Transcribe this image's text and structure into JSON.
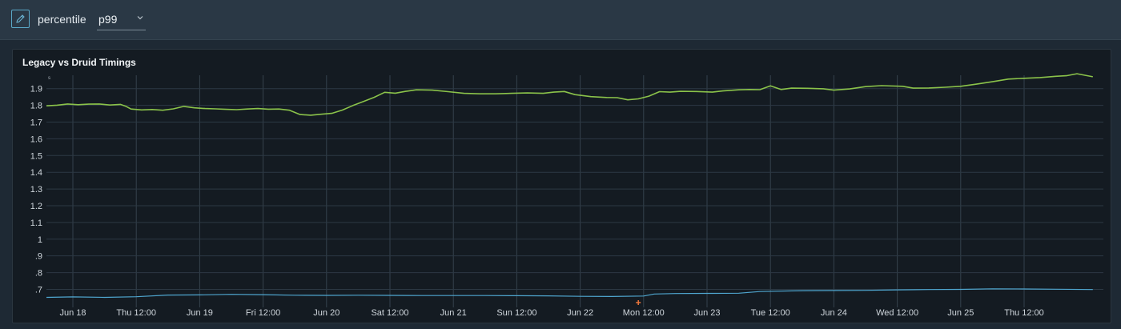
{
  "variable": {
    "label": "percentile",
    "value": "p99"
  },
  "panel": {
    "title": "Legacy vs Druid Timings"
  },
  "colors": {
    "series_green": "#8bc34a",
    "series_blue": "#4fa6cf",
    "marker": "#e8743b"
  },
  "chart_data": {
    "type": "line",
    "title": "Legacy vs Druid Timings",
    "ylabel": "s",
    "ylim": [
      0.64,
      1.98
    ],
    "yticks": [
      {
        "value": 1.9,
        "label": "1.9"
      },
      {
        "value": 1.8,
        "label": "1.8"
      },
      {
        "value": 1.7,
        "label": "1.7"
      },
      {
        "value": 1.6,
        "label": "1.6"
      },
      {
        "value": 1.5,
        "label": "1.5"
      },
      {
        "value": 1.4,
        "label": "1.4"
      },
      {
        "value": 1.3,
        "label": "1.3"
      },
      {
        "value": 1.2,
        "label": "1.2"
      },
      {
        "value": 1.1,
        "label": "1.1"
      },
      {
        "value": 1.0,
        "label": "1"
      },
      {
        "value": 0.9,
        "label": ".9"
      },
      {
        "value": 0.8,
        "label": ".8"
      },
      {
        "value": 0.7,
        "label": ".7"
      }
    ],
    "xlim": [
      "2021-06-17T19:00",
      "2021-06-26T03:00"
    ],
    "xticks": [
      {
        "t": "2021-06-18T00:00",
        "label": "Jun 18"
      },
      {
        "t": "2021-06-18T12:00",
        "label": "Thu 12:00"
      },
      {
        "t": "2021-06-19T00:00",
        "label": "Jun 19"
      },
      {
        "t": "2021-06-19T12:00",
        "label": "Fri 12:00"
      },
      {
        "t": "2021-06-20T00:00",
        "label": "Jun 20"
      },
      {
        "t": "2021-06-20T12:00",
        "label": "Sat 12:00"
      },
      {
        "t": "2021-06-21T00:00",
        "label": "Jun 21"
      },
      {
        "t": "2021-06-21T12:00",
        "label": "Sun 12:00"
      },
      {
        "t": "2021-06-22T00:00",
        "label": "Jun 22"
      },
      {
        "t": "2021-06-22T12:00",
        "label": "Mon 12:00"
      },
      {
        "t": "2021-06-23T00:00",
        "label": "Jun 23"
      },
      {
        "t": "2021-06-23T12:00",
        "label": "Tue 12:00"
      },
      {
        "t": "2021-06-24T00:00",
        "label": "Jun 24"
      },
      {
        "t": "2021-06-24T12:00",
        "label": "Wed 12:00"
      },
      {
        "t": "2021-06-25T00:00",
        "label": "Jun 25"
      },
      {
        "t": "2021-06-25T12:00",
        "label": "Thu 12:00"
      }
    ],
    "grid": true,
    "series": [
      {
        "color": "#8bc34a",
        "points": [
          [
            "2021-06-17T19:00",
            1.797
          ],
          [
            "2021-06-17T21:00",
            1.801
          ],
          [
            "2021-06-17T23:00",
            1.808
          ],
          [
            "2021-06-18T01:00",
            1.804
          ],
          [
            "2021-06-18T03:00",
            1.807
          ],
          [
            "2021-06-18T05:00",
            1.808
          ],
          [
            "2021-06-18T07:00",
            1.802
          ],
          [
            "2021-06-18T09:00",
            1.806
          ],
          [
            "2021-06-18T10:00",
            1.795
          ],
          [
            "2021-06-18T11:00",
            1.778
          ],
          [
            "2021-06-18T13:00",
            1.773
          ],
          [
            "2021-06-18T15:00",
            1.775
          ],
          [
            "2021-06-18T17:00",
            1.771
          ],
          [
            "2021-06-18T19:00",
            1.779
          ],
          [
            "2021-06-18T21:00",
            1.794
          ],
          [
            "2021-06-18T23:00",
            1.785
          ],
          [
            "2021-06-19T01:00",
            1.781
          ],
          [
            "2021-06-19T03:00",
            1.779
          ],
          [
            "2021-06-19T05:00",
            1.776
          ],
          [
            "2021-06-19T07:00",
            1.774
          ],
          [
            "2021-06-19T09:00",
            1.778
          ],
          [
            "2021-06-19T11:00",
            1.781
          ],
          [
            "2021-06-19T13:00",
            1.777
          ],
          [
            "2021-06-19T15:00",
            1.778
          ],
          [
            "2021-06-19T17:00",
            1.771
          ],
          [
            "2021-06-19T19:00",
            1.745
          ],
          [
            "2021-06-19T21:00",
            1.741
          ],
          [
            "2021-06-19T23:00",
            1.747
          ],
          [
            "2021-06-20T01:00",
            1.752
          ],
          [
            "2021-06-20T03:00",
            1.772
          ],
          [
            "2021-06-20T05:00",
            1.799
          ],
          [
            "2021-06-20T07:00",
            1.823
          ],
          [
            "2021-06-20T09:00",
            1.848
          ],
          [
            "2021-06-20T11:00",
            1.878
          ],
          [
            "2021-06-20T13:00",
            1.873
          ],
          [
            "2021-06-20T15:00",
            1.884
          ],
          [
            "2021-06-20T17:00",
            1.893
          ],
          [
            "2021-06-20T20:00",
            1.891
          ],
          [
            "2021-06-20T23:00",
            1.882
          ],
          [
            "2021-06-21T02:00",
            1.872
          ],
          [
            "2021-06-21T05:00",
            1.869
          ],
          [
            "2021-06-21T08:00",
            1.869
          ],
          [
            "2021-06-21T11:00",
            1.872
          ],
          [
            "2021-06-21T14:00",
            1.874
          ],
          [
            "2021-06-21T17:00",
            1.872
          ],
          [
            "2021-06-21T19:00",
            1.879
          ],
          [
            "2021-06-21T21:00",
            1.883
          ],
          [
            "2021-06-21T23:00",
            1.864
          ],
          [
            "2021-06-22T02:00",
            1.852
          ],
          [
            "2021-06-22T05:00",
            1.847
          ],
          [
            "2021-06-22T07:00",
            1.846
          ],
          [
            "2021-06-22T09:00",
            1.833
          ],
          [
            "2021-06-22T11:00",
            1.839
          ],
          [
            "2021-06-22T13:00",
            1.855
          ],
          [
            "2021-06-22T15:00",
            1.882
          ],
          [
            "2021-06-22T17:00",
            1.879
          ],
          [
            "2021-06-22T19:00",
            1.884
          ],
          [
            "2021-06-22T22:00",
            1.883
          ],
          [
            "2021-06-23T01:00",
            1.879
          ],
          [
            "2021-06-23T03:00",
            1.886
          ],
          [
            "2021-06-23T06:00",
            1.893
          ],
          [
            "2021-06-23T08:00",
            1.895
          ],
          [
            "2021-06-23T10:00",
            1.894
          ],
          [
            "2021-06-23T12:00",
            1.917
          ],
          [
            "2021-06-23T14:00",
            1.895
          ],
          [
            "2021-06-23T16:00",
            1.903
          ],
          [
            "2021-06-23T19:00",
            1.902
          ],
          [
            "2021-06-23T22:00",
            1.899
          ],
          [
            "2021-06-24T00:00",
            1.891
          ],
          [
            "2021-06-24T03:00",
            1.898
          ],
          [
            "2021-06-24T06:00",
            1.912
          ],
          [
            "2021-06-24T09:00",
            1.918
          ],
          [
            "2021-06-24T13:00",
            1.914
          ],
          [
            "2021-06-24T15:00",
            1.903
          ],
          [
            "2021-06-24T18:00",
            1.904
          ],
          [
            "2021-06-24T21:00",
            1.908
          ],
          [
            "2021-06-25T00:00",
            1.914
          ],
          [
            "2021-06-25T03:00",
            1.927
          ],
          [
            "2021-06-25T06:00",
            1.941
          ],
          [
            "2021-06-25T09:00",
            1.957
          ],
          [
            "2021-06-25T12:00",
            1.962
          ],
          [
            "2021-06-25T15:00",
            1.966
          ],
          [
            "2021-06-25T18:00",
            1.974
          ],
          [
            "2021-06-25T20:00",
            1.977
          ],
          [
            "2021-06-25T22:00",
            1.989
          ],
          [
            "2021-06-26T01:00",
            1.971
          ]
        ]
      },
      {
        "color": "#4fa6cf",
        "points": [
          [
            "2021-06-17T19:00",
            0.652
          ],
          [
            "2021-06-18T00:00",
            0.655
          ],
          [
            "2021-06-18T06:00",
            0.652
          ],
          [
            "2021-06-18T12:00",
            0.656
          ],
          [
            "2021-06-18T18:00",
            0.666
          ],
          [
            "2021-06-19T00:00",
            0.667
          ],
          [
            "2021-06-19T06:00",
            0.67
          ],
          [
            "2021-06-19T12:00",
            0.668
          ],
          [
            "2021-06-19T18:00",
            0.665
          ],
          [
            "2021-06-20T00:00",
            0.664
          ],
          [
            "2021-06-20T06:00",
            0.665
          ],
          [
            "2021-06-20T12:00",
            0.664
          ],
          [
            "2021-06-20T18:00",
            0.663
          ],
          [
            "2021-06-21T00:00",
            0.663
          ],
          [
            "2021-06-21T06:00",
            0.663
          ],
          [
            "2021-06-21T12:00",
            0.662
          ],
          [
            "2021-06-21T18:00",
            0.661
          ],
          [
            "2021-06-22T00:00",
            0.658
          ],
          [
            "2021-06-22T06:00",
            0.657
          ],
          [
            "2021-06-22T12:00",
            0.66
          ],
          [
            "2021-06-22T14:00",
            0.672
          ],
          [
            "2021-06-22T18:00",
            0.675
          ],
          [
            "2021-06-23T00:00",
            0.676
          ],
          [
            "2021-06-23T06:00",
            0.677
          ],
          [
            "2021-06-23T10:00",
            0.687
          ],
          [
            "2021-06-23T18:00",
            0.692
          ],
          [
            "2021-06-24T00:00",
            0.693
          ],
          [
            "2021-06-24T06:00",
            0.694
          ],
          [
            "2021-06-24T12:00",
            0.697
          ],
          [
            "2021-06-24T18:00",
            0.699
          ],
          [
            "2021-06-25T00:00",
            0.7
          ],
          [
            "2021-06-25T06:00",
            0.703
          ],
          [
            "2021-06-25T12:00",
            0.702
          ],
          [
            "2021-06-25T18:00",
            0.701
          ],
          [
            "2021-06-26T01:00",
            0.699
          ]
        ]
      }
    ],
    "markers": [
      {
        "t": "2021-06-22T11:00",
        "color": "#e8743b"
      }
    ]
  }
}
